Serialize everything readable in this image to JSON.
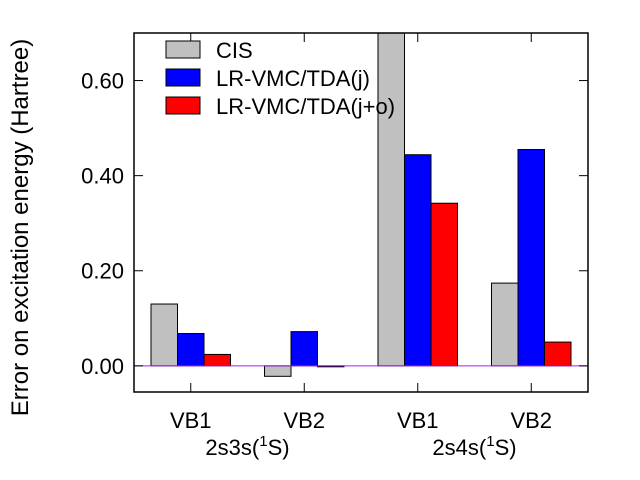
{
  "chart_data": {
    "type": "bar",
    "ylabel": "Error on excitation energy (Hartree)",
    "ylim": [
      -0.055,
      0.7
    ],
    "yticks": [
      0.0,
      0.2,
      0.4,
      0.6
    ],
    "ytick_labels": [
      "0.00",
      "0.20",
      "0.40",
      "0.60"
    ],
    "categories": [
      "VB1",
      "VB2",
      "VB1",
      "VB2"
    ],
    "groups": [
      {
        "label_main": "2s3s(",
        "label_sup": "1",
        "label_end": "S)",
        "categories": [
          0,
          1
        ]
      },
      {
        "label_main": "2s4s(",
        "label_sup": "1",
        "label_end": "S)",
        "categories": [
          2,
          3
        ]
      }
    ],
    "series": [
      {
        "name": "CIS",
        "color": "#c0c0c0",
        "values": [
          0.13,
          -0.022,
          0.7,
          0.174
        ]
      },
      {
        "name": "LR-VMC/TDA(j)",
        "color": "#0000ff",
        "values": [
          0.068,
          0.072,
          0.444,
          0.455
        ]
      },
      {
        "name": "LR-VMC/TDA(j+o)",
        "color": "#ff0000",
        "values": [
          0.024,
          -0.002,
          0.342,
          0.05
        ]
      }
    ],
    "zero_line_color": "#a020f0",
    "legend_position": "top-left",
    "grid": false
  }
}
